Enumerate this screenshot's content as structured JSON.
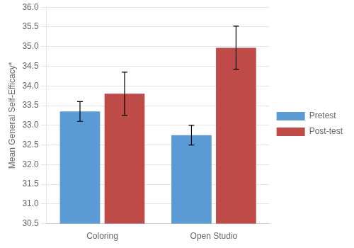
{
  "chart_data": {
    "type": "bar",
    "categories": [
      "Coloring",
      "Open Studio"
    ],
    "series": [
      {
        "name": "Pretest",
        "color": "#5B9BD5",
        "values": [
          33.35,
          32.75
        ],
        "errors": [
          0.25,
          0.25
        ]
      },
      {
        "name": "Post-test",
        "color": "#BE4B48",
        "values": [
          33.8,
          34.97
        ],
        "errors": [
          0.55,
          0.55
        ]
      }
    ],
    "ylabel": "Mean General Self-Efficacy*",
    "ylim": [
      30.5,
      36.0
    ],
    "yticks": [
      30.5,
      {
        "value": 31,
        "label": "31.0"
      },
      31.5,
      {
        "value": 32,
        "label": "32.0"
      },
      32.5,
      {
        "value": 33,
        "label": "33.0"
      },
      33.5,
      {
        "value": 34,
        "label": "34.0"
      },
      34.5,
      {
        "value": 35,
        "label": "35.0"
      },
      35.5,
      {
        "value": 36,
        "label": "36.0"
      }
    ],
    "grid": true,
    "legend": "right"
  }
}
